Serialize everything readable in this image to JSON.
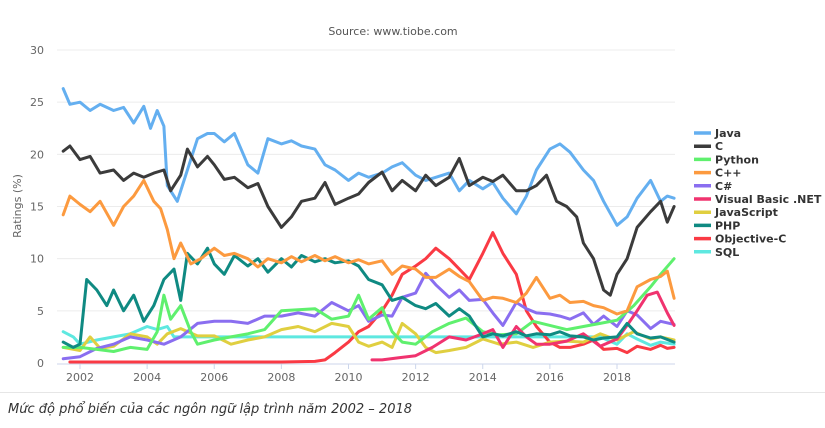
{
  "chart_data": {
    "type": "line",
    "title": "Source: www.tiobe.com",
    "xlabel": "",
    "ylabel": "Ratings (%)",
    "xlim": [
      2001.5,
      2019.7
    ],
    "ylim": [
      0,
      30
    ],
    "yticks": [
      0,
      5,
      10,
      15,
      20,
      25,
      30
    ],
    "xticks": [
      2002,
      2004,
      2006,
      2008,
      2010,
      2012,
      2014,
      2016,
      2018
    ],
    "grid": true,
    "legend_position": "right",
    "series": [
      {
        "name": "Java",
        "color": "#64aff0",
        "x": [
          2001.5,
          2001.7,
          2002,
          2002.3,
          2002.6,
          2003,
          2003.3,
          2003.6,
          2003.9,
          2004.1,
          2004.3,
          2004.5,
          2004.6,
          2004.9,
          2005.2,
          2005.5,
          2005.8,
          2006,
          2006.3,
          2006.6,
          2007,
          2007.3,
          2007.6,
          2008,
          2008.3,
          2008.6,
          2009,
          2009.3,
          2009.6,
          2010,
          2010.3,
          2010.6,
          2011,
          2011.3,
          2011.6,
          2012,
          2012.3,
          2012.6,
          2013,
          2013.3,
          2013.6,
          2014,
          2014.3,
          2014.6,
          2015,
          2015.3,
          2015.6,
          2016,
          2016.3,
          2016.6,
          2017,
          2017.3,
          2017.6,
          2018,
          2018.3,
          2018.6,
          2019,
          2019.3,
          2019.5,
          2019.7
        ],
        "y": [
          26.3,
          24.8,
          25,
          24.2,
          24.8,
          24.2,
          24.5,
          23,
          24.6,
          22.5,
          24.2,
          22.7,
          17,
          15.5,
          18.5,
          21.5,
          22,
          22,
          21.2,
          22,
          19,
          18.2,
          21.5,
          21,
          21.3,
          20.8,
          20.5,
          19,
          18.5,
          17.5,
          18.2,
          17.8,
          18.2,
          18.8,
          19.2,
          18,
          17.5,
          17.8,
          18.2,
          16.5,
          17.5,
          16.7,
          17.3,
          15.8,
          14.3,
          16,
          18.5,
          20.5,
          21,
          20.2,
          18.5,
          17.5,
          15.5,
          13.2,
          14,
          15.8,
          17.5,
          15.5,
          16,
          15.8
        ]
      },
      {
        "name": "C",
        "color": "#3b3b3b",
        "x": [
          2001.5,
          2001.7,
          2002,
          2002.3,
          2002.6,
          2003,
          2003.3,
          2003.6,
          2003.9,
          2004.2,
          2004.5,
          2004.7,
          2005,
          2005.2,
          2005.5,
          2005.8,
          2006,
          2006.3,
          2006.6,
          2007,
          2007.3,
          2007.6,
          2008,
          2008.3,
          2008.6,
          2009,
          2009.3,
          2009.6,
          2010,
          2010.3,
          2010.6,
          2011,
          2011.3,
          2011.6,
          2012,
          2012.3,
          2012.6,
          2013,
          2013.3,
          2013.6,
          2014,
          2014.3,
          2014.6,
          2015,
          2015.3,
          2015.6,
          2015.9,
          2016.2,
          2016.5,
          2016.8,
          2017,
          2017.3,
          2017.6,
          2017.8,
          2018,
          2018.3,
          2018.6,
          2019,
          2019.3,
          2019.5,
          2019.7
        ],
        "y": [
          20.3,
          20.8,
          19.5,
          19.8,
          18.2,
          18.5,
          17.5,
          18.2,
          17.8,
          18.2,
          18.5,
          16.5,
          18,
          20.5,
          18.8,
          19.8,
          19,
          17.6,
          17.8,
          16.8,
          17.2,
          15,
          13,
          14,
          15.5,
          15.8,
          17.3,
          15.2,
          15.8,
          16.2,
          17.3,
          18.3,
          16.5,
          17.5,
          16.5,
          18,
          17,
          17.8,
          19.6,
          17,
          17.8,
          17.4,
          18,
          16.5,
          16.5,
          17,
          18,
          15.5,
          15,
          14,
          11.5,
          10,
          7,
          6.5,
          8.5,
          10,
          13,
          14.5,
          15.5,
          13.5,
          15
        ]
      },
      {
        "name": "Python",
        "color": "#5ff06e",
        "x": [
          2001.5,
          2002,
          2002.5,
          2003,
          2003.5,
          2004,
          2004.3,
          2004.5,
          2004.7,
          2005,
          2005.3,
          2005.5,
          2006,
          2006.5,
          2007,
          2007.5,
          2008,
          2008.5,
          2009,
          2009.5,
          2010,
          2010.3,
          2010.6,
          2011,
          2011.3,
          2011.6,
          2012,
          2012.5,
          2013,
          2013.5,
          2014,
          2014.5,
          2015,
          2015.5,
          2016,
          2016.5,
          2017,
          2017.5,
          2018,
          2018.5,
          2019,
          2019.3,
          2019.7
        ],
        "y": [
          1.5,
          1.5,
          1.3,
          1.1,
          1.5,
          1.3,
          3,
          6.5,
          4.2,
          5.5,
          3,
          1.8,
          2.2,
          2.5,
          2.8,
          3.2,
          5,
          5.1,
          5.2,
          4.2,
          4.5,
          6.5,
          4.2,
          5.3,
          3,
          2,
          1.8,
          3,
          3.8,
          4.3,
          3,
          2.7,
          2.8,
          4,
          3.6,
          3.2,
          3.5,
          3.8,
          4.1,
          5.5,
          7.3,
          8.5,
          10
        ]
      },
      {
        "name": "C++",
        "color": "#fc9a3f",
        "x": [
          2001.5,
          2001.7,
          2002,
          2002.3,
          2002.6,
          2003,
          2003.3,
          2003.6,
          2003.9,
          2004.2,
          2004.4,
          2004.6,
          2004.8,
          2005,
          2005.3,
          2005.6,
          2006,
          2006.3,
          2006.6,
          2007,
          2007.3,
          2007.6,
          2008,
          2008.3,
          2008.6,
          2009,
          2009.3,
          2009.6,
          2010,
          2010.3,
          2010.6,
          2011,
          2011.3,
          2011.6,
          2012,
          2012.3,
          2012.6,
          2013,
          2013.3,
          2013.6,
          2014,
          2014.3,
          2014.6,
          2015,
          2015.3,
          2015.6,
          2016,
          2016.3,
          2016.6,
          2017,
          2017.3,
          2017.6,
          2018,
          2018.3,
          2018.6,
          2019,
          2019.3,
          2019.5,
          2019.7
        ],
        "y": [
          14.2,
          16,
          15.2,
          14.5,
          15.5,
          13.2,
          15,
          16,
          17.5,
          15.5,
          14.8,
          12.8,
          10,
          11.5,
          9.5,
          10,
          11,
          10.3,
          10.5,
          10,
          9.2,
          10,
          9.6,
          10.2,
          9.7,
          10.3,
          9.8,
          10.2,
          9.6,
          9.9,
          9.5,
          9.8,
          8.5,
          9.3,
          9,
          8.2,
          8.2,
          9,
          8.3,
          7.8,
          6,
          6.3,
          6.2,
          5.8,
          6.7,
          8.2,
          6.2,
          6.5,
          5.8,
          5.9,
          5.5,
          5.3,
          4.7,
          5,
          7.3,
          8,
          8.3,
          8.8,
          6.2
        ]
      },
      {
        "name": "C#",
        "color": "#8a6ef0",
        "x": [
          2001.5,
          2002,
          2002.5,
          2003,
          2003.5,
          2004,
          2004.5,
          2005,
          2005.5,
          2006,
          2006.5,
          2007,
          2007.5,
          2008,
          2008.5,
          2009,
          2009.5,
          2010,
          2010.3,
          2010.6,
          2011,
          2011.3,
          2011.6,
          2012,
          2012.3,
          2012.6,
          2013,
          2013.3,
          2013.6,
          2014,
          2014.3,
          2014.6,
          2015,
          2015.3,
          2015.6,
          2016,
          2016.3,
          2016.6,
          2017,
          2017.3,
          2017.6,
          2018,
          2018.3,
          2018.6,
          2019,
          2019.3,
          2019.7
        ],
        "y": [
          0.4,
          0.6,
          1.4,
          1.8,
          2.5,
          2.2,
          1.8,
          2.5,
          3.8,
          4,
          4,
          3.8,
          4.5,
          4.5,
          4.8,
          4.5,
          5.8,
          5,
          5.5,
          4,
          4.6,
          4.5,
          6.3,
          6.7,
          8.6,
          7.5,
          6.3,
          7,
          6,
          6.1,
          4.8,
          3.6,
          5.8,
          5.2,
          4.8,
          4.7,
          4.5,
          4.2,
          4.8,
          3.7,
          4.5,
          3.5,
          5,
          4.6,
          3.3,
          4,
          3.7
        ]
      },
      {
        "name": "Visual Basic .NET",
        "color": "#f0336f",
        "x": [
          2010.7,
          2011,
          2011.5,
          2012,
          2012.5,
          2013,
          2013.5,
          2014,
          2014.3,
          2014.6,
          2015,
          2015.3,
          2015.6,
          2016,
          2016.5,
          2017,
          2017.5,
          2018,
          2018.3,
          2018.6,
          2018.9,
          2019.2,
          2019.5,
          2019.7
        ],
        "y": [
          0.3,
          0.3,
          0.5,
          0.7,
          1.5,
          2.5,
          2.2,
          2.8,
          3.2,
          1.5,
          3.5,
          2.5,
          1.8,
          1.8,
          2.1,
          2.8,
          1.6,
          2.3,
          3.6,
          5,
          6.5,
          6.8,
          4.8,
          3.6
        ]
      },
      {
        "name": "JavaScript",
        "color": "#e0cf40",
        "x": [
          2001.5,
          2002,
          2002.3,
          2002.6,
          2003,
          2003.5,
          2004,
          2004.3,
          2004.6,
          2005,
          2005.5,
          2006,
          2006.5,
          2007,
          2007.5,
          2008,
          2008.5,
          2009,
          2009.5,
          2010,
          2010.3,
          2010.6,
          2011,
          2011.3,
          2011.6,
          2012,
          2012.3,
          2012.6,
          2013,
          2013.5,
          2014,
          2014.5,
          2015,
          2015.5,
          2016,
          2016.5,
          2017,
          2017.5,
          2018,
          2018.5,
          2019,
          2019.3,
          2019.7
        ],
        "y": [
          1.5,
          1.2,
          2.5,
          1.4,
          1.6,
          2.8,
          2.5,
          1.8,
          2.8,
          3.3,
          2.6,
          2.6,
          1.8,
          2.2,
          2.5,
          3.2,
          3.5,
          3,
          3.8,
          3.5,
          2,
          1.6,
          2,
          1.5,
          3.8,
          2.8,
          1.5,
          1,
          1.2,
          1.5,
          2.3,
          1.8,
          2,
          1.5,
          2,
          2.1,
          2,
          2.8,
          2.2,
          3,
          2.3,
          2.5,
          2.2
        ]
      },
      {
        "name": "PHP",
        "color": "#0f8a82",
        "x": [
          2001.5,
          2001.8,
          2002,
          2002.2,
          2002.5,
          2002.8,
          2003,
          2003.3,
          2003.6,
          2003.9,
          2004.2,
          2004.5,
          2004.8,
          2005,
          2005.2,
          2005.5,
          2005.8,
          2006,
          2006.3,
          2006.6,
          2007,
          2007.3,
          2007.6,
          2008,
          2008.3,
          2008.6,
          2009,
          2009.3,
          2009.6,
          2010,
          2010.3,
          2010.6,
          2011,
          2011.3,
          2011.6,
          2012,
          2012.3,
          2012.6,
          2013,
          2013.3,
          2013.6,
          2014,
          2014.3,
          2014.6,
          2015,
          2015.3,
          2015.6,
          2016,
          2016.3,
          2016.6,
          2017,
          2017.3,
          2017.6,
          2018,
          2018.3,
          2018.6,
          2019,
          2019.3,
          2019.7
        ],
        "y": [
          2,
          1.5,
          1.8,
          8,
          7,
          5.5,
          7,
          5,
          6.5,
          4,
          5.5,
          8,
          9,
          6,
          10.5,
          9.5,
          11,
          9.5,
          8.5,
          10.3,
          9.3,
          10,
          8.7,
          10,
          9.2,
          10.3,
          9.7,
          10,
          9.6,
          9.8,
          9.3,
          8,
          7.5,
          6,
          6.3,
          5.5,
          5.2,
          5.7,
          4.5,
          5.2,
          4.5,
          2.5,
          2.8,
          2.6,
          3,
          2.6,
          2.8,
          2.7,
          3,
          2.6,
          2.5,
          2.2,
          2.4,
          2.5,
          3.8,
          2.8,
          2.4,
          2.5,
          2
        ]
      },
      {
        "name": "Objective-C",
        "color": "#fa3a44",
        "x": [
          2001.7,
          2003,
          2004,
          2005,
          2006,
          2007,
          2008,
          2009,
          2009.3,
          2009.6,
          2010,
          2010.3,
          2010.6,
          2011,
          2011.3,
          2011.6,
          2012,
          2012.3,
          2012.6,
          2013,
          2013.3,
          2013.6,
          2014,
          2014.3,
          2014.6,
          2015,
          2015.3,
          2015.6,
          2016,
          2016.3,
          2016.6,
          2017,
          2017.3,
          2017.6,
          2018,
          2018.3,
          2018.6,
          2019,
          2019.3,
          2019.5,
          2019.7
        ],
        "y": [
          0.1,
          0.1,
          0.1,
          0.1,
          0.1,
          0.1,
          0.1,
          0.15,
          0.3,
          1,
          2,
          3,
          3.5,
          5,
          6.5,
          8.5,
          9.3,
          10,
          11,
          10,
          9,
          8,
          10.5,
          12.5,
          10.5,
          8.5,
          5,
          3.5,
          2,
          1.5,
          1.5,
          1.8,
          2.2,
          1.3,
          1.4,
          1,
          1.6,
          1.3,
          1.7,
          1.4,
          1.5
        ]
      },
      {
        "name": "SQL",
        "color": "#5ee8e0",
        "x": [
          2001.5,
          2001.8,
          2002,
          2002.5,
          2003,
          2003.5,
          2004,
          2004.3,
          2004.6,
          2004.8,
          2005,
          2006,
          2007,
          2008,
          2009,
          2010,
          2011,
          2012,
          2013,
          2014,
          2015,
          2016,
          2017,
          2017.5,
          2018,
          2018.3,
          2018.6,
          2019,
          2019.3,
          2019.7
        ],
        "y": [
          3,
          2.5,
          1.8,
          2.2,
          2.5,
          2.8,
          3.5,
          3.2,
          3.5,
          2.5,
          2.5,
          2.5,
          2.5,
          2.5,
          2.5,
          2.5,
          2.5,
          2.5,
          2.5,
          2.5,
          2.5,
          2.5,
          2.5,
          2.5,
          1.8,
          2.8,
          2.3,
          1.7,
          2,
          1.8
        ]
      }
    ]
  },
  "caption": "Mức độ phổ biến của các ngôn ngữ lập trình năm 2002 – 2018"
}
